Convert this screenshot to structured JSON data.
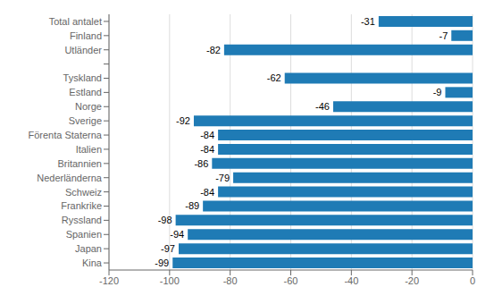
{
  "chart_data": {
    "type": "bar",
    "orientation": "horizontal",
    "categories": [
      "Total antalet",
      "Finland",
      "Utländer",
      null,
      "Tyskland",
      "Estland",
      "Norge",
      "Sverige",
      "Förenta Staterna",
      "Italien",
      "Britannien",
      "Nederländerna",
      "Schweiz",
      "Frankrike",
      "Ryssland",
      "Spanien",
      "Japan",
      "Kina"
    ],
    "values": [
      -31,
      -7,
      -82,
      null,
      -62,
      -9,
      -46,
      -92,
      -84,
      -84,
      -86,
      -79,
      -84,
      -89,
      -98,
      -94,
      -97,
      -99
    ],
    "color": "#1f7bb5",
    "xlim": [
      -120,
      0
    ],
    "xticks": [
      -120,
      -100,
      -80,
      -60,
      -40,
      -20,
      0
    ],
    "grid": true,
    "data_labels": true
  }
}
